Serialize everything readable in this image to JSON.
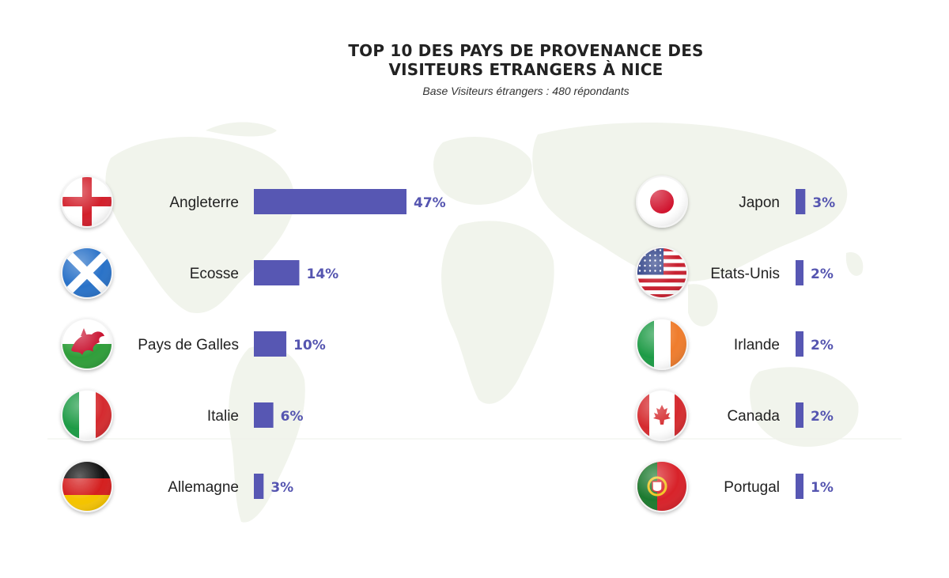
{
  "title_line_1": "TOP 10 DES PAYS DE PROVENANCE DES",
  "title_line_2": "VISITEURS ETRANGERS À NICE",
  "subtitle": "Base Visiteurs étrangers : 480 répondants",
  "colors": {
    "bar": "#5757b3",
    "value_text": "#5555b0",
    "map": "#f0f3ec"
  },
  "chart_data": {
    "type": "bar",
    "orientation": "horizontal",
    "title": "TOP 10 DES PAYS DE PROVENANCE DES VISITEURS ETRANGERS À NICE",
    "subtitle": "Base Visiteurs étrangers : 480 répondants",
    "unit": "%",
    "xlim": [
      0,
      47
    ],
    "columns": [
      {
        "items": [
          {
            "country": "Angleterre",
            "value": 47,
            "label": "47%",
            "flag": "england-flag-icon"
          },
          {
            "country": "Ecosse",
            "value": 14,
            "label": "14%",
            "flag": "scotland-flag-icon"
          },
          {
            "country": "Pays de Galles",
            "value": 10,
            "label": "10%",
            "flag": "wales-flag-icon"
          },
          {
            "country": "Italie",
            "value": 6,
            "label": "6%",
            "flag": "italy-flag-icon"
          },
          {
            "country": "Allemagne",
            "value": 3,
            "label": "3%",
            "flag": "germany-flag-icon"
          }
        ]
      },
      {
        "items": [
          {
            "country": "Japon",
            "value": 3,
            "label": "3%",
            "flag": "japan-flag-icon"
          },
          {
            "country": "Etats-Unis",
            "value": 2,
            "label": "2%",
            "flag": "usa-flag-icon"
          },
          {
            "country": "Irlande",
            "value": 2,
            "label": "2%",
            "flag": "ireland-flag-icon"
          },
          {
            "country": "Canada",
            "value": 2,
            "label": "2%",
            "flag": "canada-flag-icon"
          },
          {
            "country": "Portugal",
            "value": 1,
            "label": "1%",
            "flag": "portugal-flag-icon"
          }
        ]
      }
    ]
  }
}
